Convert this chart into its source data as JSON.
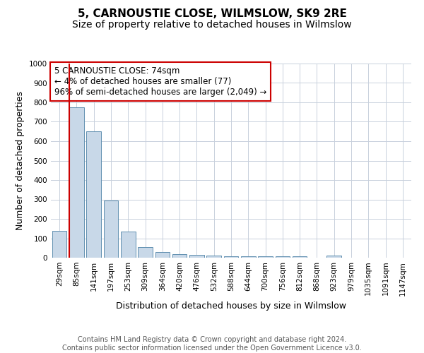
{
  "title": "5, CARNOUSTIE CLOSE, WILMSLOW, SK9 2RE",
  "subtitle": "Size of property relative to detached houses in Wilmslow",
  "xlabel": "Distribution of detached houses by size in Wilmslow",
  "ylabel": "Number of detached properties",
  "footer_line1": "Contains HM Land Registry data © Crown copyright and database right 2024.",
  "footer_line2": "Contains public sector information licensed under the Open Government Licence v3.0.",
  "annotation_line1": "5 CARNOUSTIE CLOSE: 74sqm",
  "annotation_line2": "← 4% of detached houses are smaller (77)",
  "annotation_line3": "96% of semi-detached houses are larger (2,049) →",
  "bar_labels": [
    "29sqm",
    "85sqm",
    "141sqm",
    "197sqm",
    "253sqm",
    "309sqm",
    "364sqm",
    "420sqm",
    "476sqm",
    "532sqm",
    "588sqm",
    "644sqm",
    "700sqm",
    "756sqm",
    "812sqm",
    "868sqm",
    "923sqm",
    "979sqm",
    "1035sqm",
    "1091sqm",
    "1147sqm"
  ],
  "bar_values": [
    140,
    775,
    650,
    295,
    135,
    55,
    28,
    18,
    15,
    10,
    8,
    8,
    8,
    8,
    7,
    0,
    12,
    0,
    0,
    0,
    0
  ],
  "bar_color": "#c8d8e8",
  "bar_edge_color": "#6090b0",
  "vline_color": "#cc0000",
  "ylim": [
    0,
    1000
  ],
  "yticks": [
    0,
    100,
    200,
    300,
    400,
    500,
    600,
    700,
    800,
    900,
    1000
  ],
  "background_color": "#ffffff",
  "grid_color": "#c8d0dc",
  "title_fontsize": 11,
  "subtitle_fontsize": 10,
  "axis_label_fontsize": 9,
  "tick_fontsize": 7.5,
  "annotation_fontsize": 8.5,
  "footer_fontsize": 7
}
